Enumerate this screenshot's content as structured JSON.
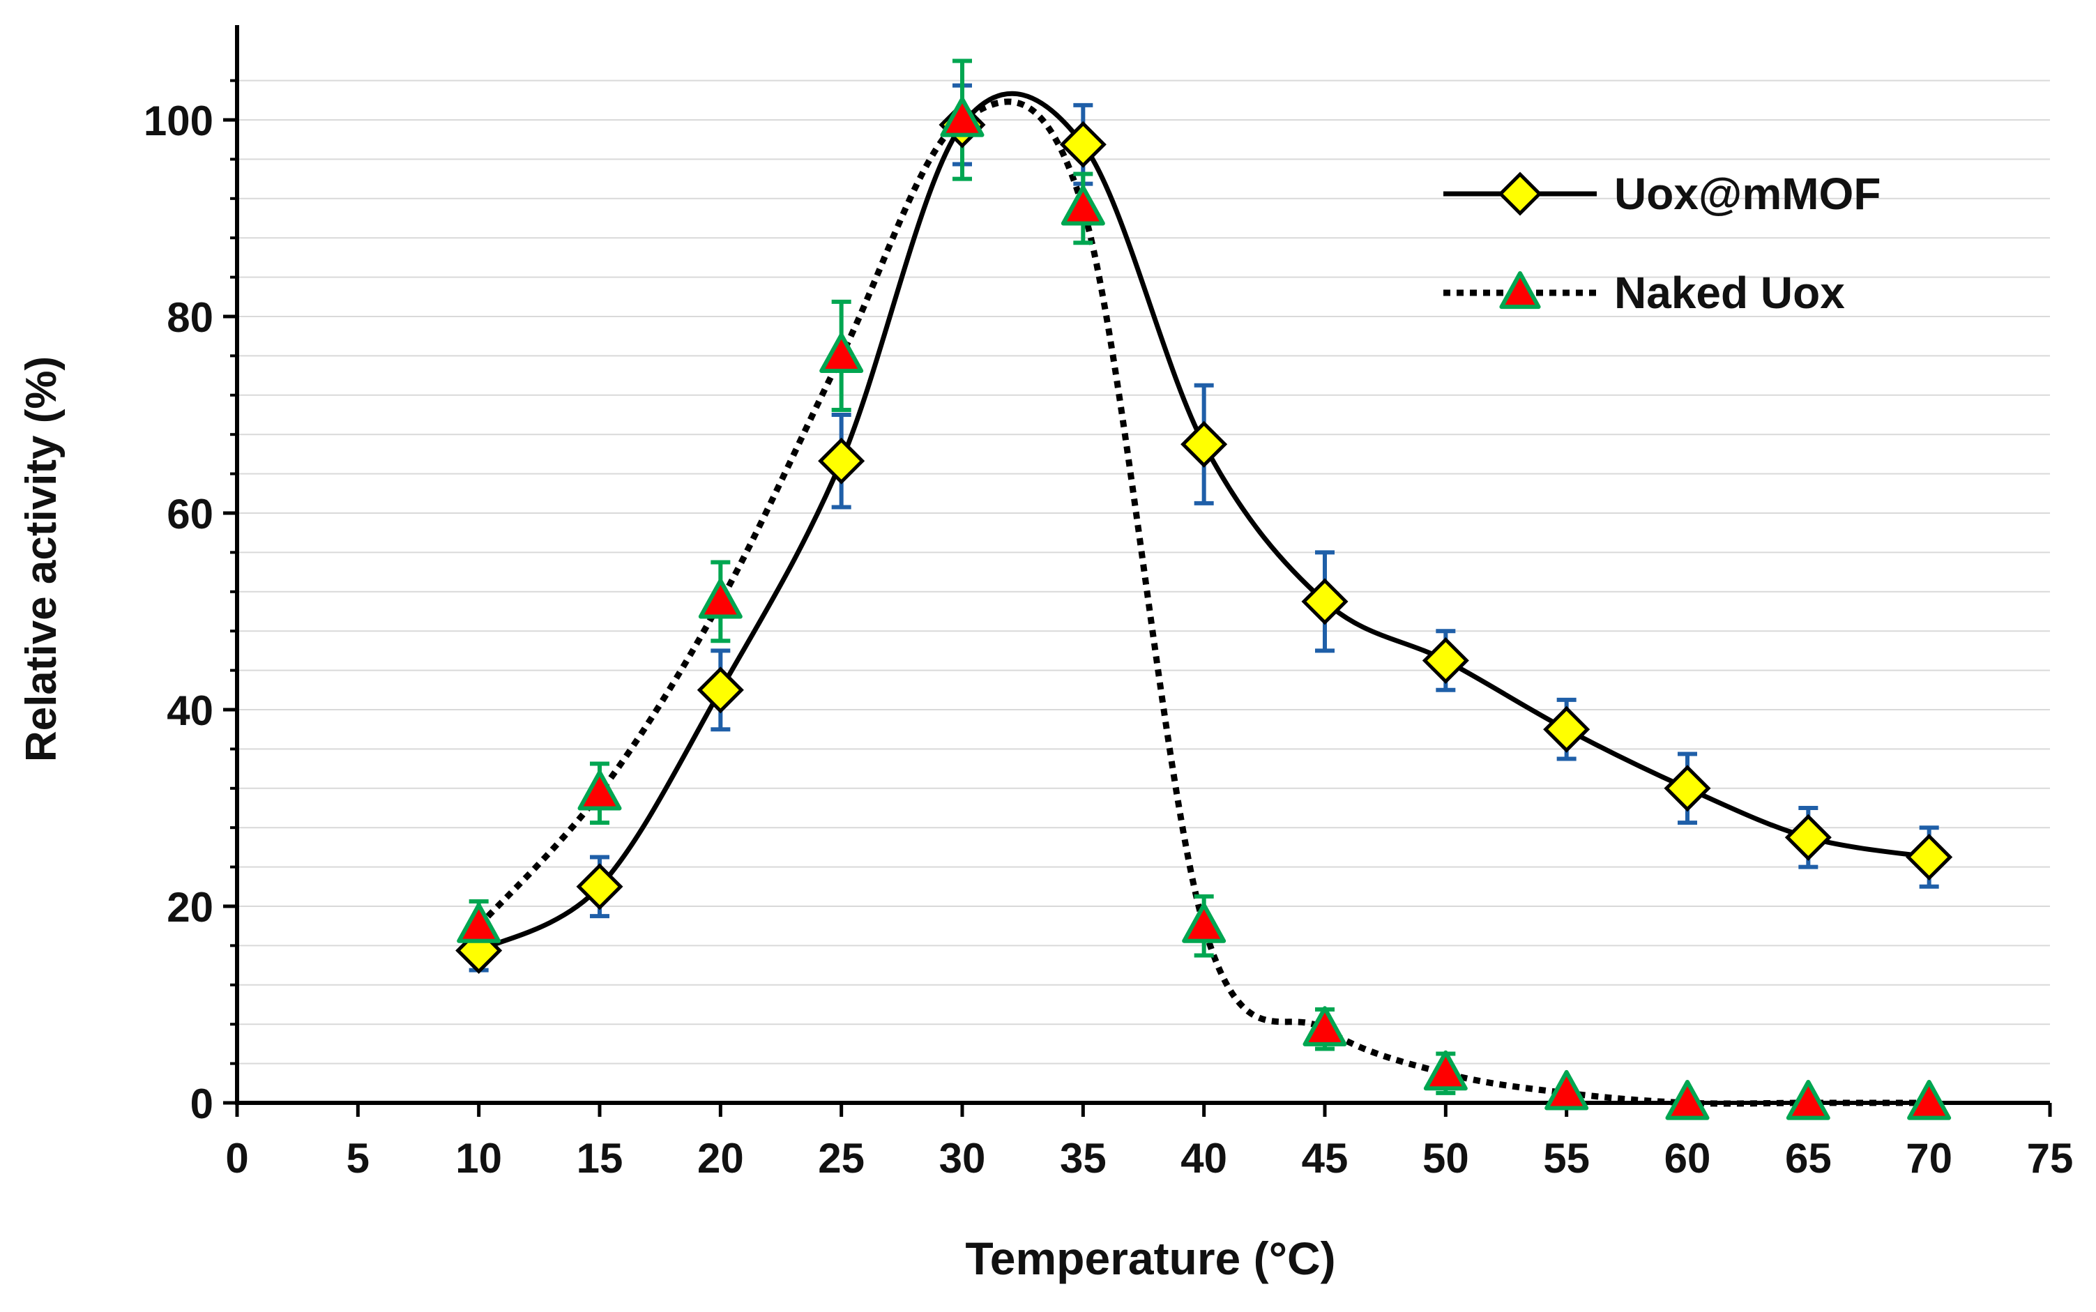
{
  "chart_data": {
    "type": "line",
    "title": "",
    "xlabel": "Temperature (°C)",
    "ylabel": "Relative activity (%)",
    "xlim": [
      0,
      75
    ],
    "ylim": [
      0,
      108
    ],
    "x_ticks": [
      0,
      5,
      10,
      15,
      20,
      25,
      30,
      35,
      40,
      45,
      50,
      55,
      60,
      65,
      70,
      75
    ],
    "x_tick_labels": [
      "0",
      "5",
      "10",
      "15",
      "20",
      "25",
      "30",
      "35",
      "40",
      "45",
      "50",
      "55",
      "60",
      "65",
      "70",
      "75"
    ],
    "y_ticks": [
      0,
      20,
      40,
      60,
      80,
      100
    ],
    "y_tick_labels": [
      "0",
      "20",
      "40",
      "60",
      "80",
      "100"
    ],
    "grid": true,
    "legend_position": "top-right",
    "series": [
      {
        "name": "Uox@mMOF",
        "line_style": "solid",
        "marker": "diamond",
        "line_color": "#000000",
        "marker_fill": "#ffff00",
        "marker_edge": "#000000",
        "error_color": "#1f5fa8",
        "x": [
          10,
          15,
          20,
          25,
          30,
          35,
          40,
          45,
          50,
          55,
          60,
          65,
          70
        ],
        "y": [
          15.5,
          22,
          42,
          65.3,
          99.5,
          97.5,
          67,
          51,
          45,
          38,
          32,
          27,
          25
        ],
        "error": [
          2,
          3,
          4,
          4.7,
          4,
          4,
          6,
          5,
          3,
          3,
          3.5,
          3,
          3
        ]
      },
      {
        "name": "Naked Uox",
        "line_style": "dotted",
        "marker": "triangle",
        "line_color": "#000000",
        "marker_fill": "#ff0000",
        "marker_edge": "#00a651",
        "error_color": "#00a651",
        "x": [
          10,
          15,
          20,
          25,
          30,
          35,
          40,
          45,
          50,
          55,
          60,
          65,
          70
        ],
        "y": [
          18,
          31.5,
          51,
          76,
          100,
          91,
          18,
          7.5,
          3,
          1,
          0,
          0,
          0
        ],
        "error": [
          2.5,
          3,
          4,
          5.5,
          6,
          3.5,
          3,
          2,
          2,
          0,
          0,
          0,
          0
        ]
      }
    ]
  }
}
